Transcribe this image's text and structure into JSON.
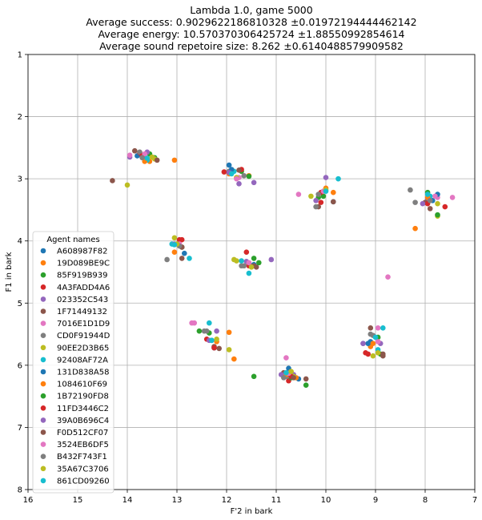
{
  "chart_data": {
    "type": "scatter",
    "title_lines": [
      "Lambda 1.0, game 5000",
      "Average success: 0.9029622186810328 ±0.01972194444462142",
      "Average energy: 10.570370306425724 ±1.88550992854614",
      "Average sound repetoire size: 8.262 ±0.6140488579909582"
    ],
    "xlabel": "F'2 in bark",
    "ylabel": "F1 in bark",
    "xlim": [
      16,
      7
    ],
    "ylim": [
      8,
      1
    ],
    "x_inverted": true,
    "y_inverted": true,
    "x_ticks": [
      16,
      15,
      14,
      13,
      12,
      11,
      10,
      9,
      8,
      7
    ],
    "y_ticks": [
      1,
      2,
      3,
      4,
      5,
      6,
      7,
      8
    ],
    "grid": true,
    "legend": {
      "title": "Agent names",
      "placement": "center-left"
    },
    "series": [
      {
        "name": "A608987F82",
        "color": "#1f77b4",
        "points": [
          [
            13.8,
            2.63
          ],
          [
            11.95,
            2.78
          ],
          [
            11.45,
            4.38
          ],
          [
            12.25,
            5.72
          ],
          [
            10.55,
            6.22
          ],
          [
            9.85,
            3.37
          ],
          [
            7.85,
            3.35
          ],
          [
            9.1,
            5.62
          ]
        ]
      },
      {
        "name": "19D089BE9C",
        "color": "#ff7f0e",
        "points": [
          [
            13.55,
            2.72
          ],
          [
            13.05,
            2.7
          ],
          [
            11.55,
            2.95
          ],
          [
            13.05,
            4.18
          ],
          [
            11.85,
            5.9
          ],
          [
            11.95,
            5.47
          ],
          [
            10.6,
            6.2
          ],
          [
            9.85,
            3.22
          ],
          [
            8.2,
            3.8
          ],
          [
            9.1,
            5.7
          ]
        ]
      },
      {
        "name": "85F919B939",
        "color": "#2ca02c",
        "points": [
          [
            13.45,
            2.66
          ],
          [
            11.55,
            2.96
          ],
          [
            11.45,
            4.28
          ],
          [
            12.55,
            5.45
          ],
          [
            11.45,
            6.18
          ],
          [
            10.4,
            6.32
          ],
          [
            10.05,
            3.28
          ],
          [
            7.95,
            3.22
          ],
          [
            8.9,
            5.82
          ]
        ]
      },
      {
        "name": "4A3FADD4A6",
        "color": "#d62728",
        "points": [
          [
            13.75,
            2.58
          ],
          [
            12.05,
            2.89
          ],
          [
            11.6,
            4.18
          ],
          [
            12.9,
            3.98
          ],
          [
            12.4,
            5.58
          ],
          [
            10.75,
            6.25
          ],
          [
            10.1,
            3.38
          ],
          [
            7.6,
            3.45
          ],
          [
            9.2,
            5.8
          ]
        ]
      },
      {
        "name": "023352C543",
        "color": "#9467bd",
        "points": [
          [
            13.95,
            2.65
          ],
          [
            11.75,
            3.08
          ],
          [
            11.45,
            3.06
          ],
          [
            11.1,
            4.3
          ],
          [
            12.2,
            5.45
          ],
          [
            10.65,
            6.15
          ],
          [
            10.0,
            2.98
          ],
          [
            8.9,
            5.65
          ],
          [
            7.95,
            3.32
          ],
          [
            9.25,
            5.65
          ]
        ]
      },
      {
        "name": "1F71449132",
        "color": "#8c564b",
        "points": [
          [
            14.3,
            3.03
          ],
          [
            13.85,
            2.55
          ],
          [
            12.9,
            4.28
          ],
          [
            11.4,
            4.42
          ],
          [
            12.25,
            5.7
          ],
          [
            10.85,
            6.12
          ],
          [
            10.15,
            3.45
          ],
          [
            8.0,
            3.38
          ],
          [
            8.85,
            5.85
          ],
          [
            10.4,
            6.22
          ],
          [
            9.1,
            5.4
          ]
        ]
      },
      {
        "name": "7016E1D1D9",
        "color": "#e377c2",
        "points": [
          [
            13.95,
            2.62
          ],
          [
            11.75,
            2.98
          ],
          [
            12.7,
            5.32
          ],
          [
            10.8,
            5.88
          ],
          [
            8.75,
            4.58
          ],
          [
            10.55,
            3.25
          ],
          [
            7.75,
            3.3
          ],
          [
            7.45,
            3.3
          ],
          [
            8.95,
            5.4
          ]
        ]
      },
      {
        "name": "CD0F91944D",
        "color": "#7f7f7f",
        "points": [
          [
            13.75,
            2.57
          ],
          [
            11.95,
            2.88
          ],
          [
            13.2,
            4.3
          ],
          [
            11.7,
            4.4
          ],
          [
            12.45,
            5.45
          ],
          [
            10.8,
            6.18
          ],
          [
            10.2,
            3.45
          ],
          [
            8.3,
            3.18
          ],
          [
            8.2,
            3.38
          ],
          [
            9.1,
            5.5
          ]
        ]
      },
      {
        "name": "90EE2D3B65",
        "color": "#bcbd22",
        "points": [
          [
            14.0,
            3.1
          ],
          [
            13.45,
            2.68
          ],
          [
            11.8,
            2.98
          ],
          [
            13.05,
            3.95
          ],
          [
            11.85,
            4.3
          ],
          [
            11.95,
            5.75
          ],
          [
            10.65,
            6.18
          ],
          [
            10.3,
            3.28
          ],
          [
            7.75,
            3.6
          ],
          [
            9.05,
            5.85
          ]
        ]
      },
      {
        "name": "92408AF72A",
        "color": "#17becf",
        "points": [
          [
            13.6,
            2.7
          ],
          [
            11.85,
            2.88
          ],
          [
            13.1,
            4.05
          ],
          [
            12.75,
            4.28
          ],
          [
            11.55,
            4.52
          ],
          [
            12.35,
            5.32
          ],
          [
            10.75,
            6.12
          ],
          [
            9.75,
            3.0
          ],
          [
            7.9,
            3.28
          ],
          [
            8.85,
            5.4
          ],
          [
            8.95,
            5.75
          ]
        ]
      },
      {
        "name": "131D838A58",
        "color": "#1f77b4",
        "points": [
          [
            13.65,
            2.65
          ],
          [
            11.9,
            2.85
          ],
          [
            12.85,
            4.2
          ],
          [
            11.5,
            4.4
          ],
          [
            12.3,
            5.6
          ],
          [
            10.75,
            6.05
          ],
          [
            10.05,
            3.2
          ],
          [
            7.75,
            3.25
          ],
          [
            9.15,
            5.65
          ]
        ]
      },
      {
        "name": "1084610F69",
        "color": "#ff7f0e",
        "points": [
          [
            13.65,
            2.72
          ],
          [
            11.95,
            2.92
          ],
          [
            12.95,
            4.08
          ],
          [
            11.55,
            4.38
          ],
          [
            12.2,
            5.62
          ],
          [
            10.8,
            6.15
          ],
          [
            10.0,
            3.15
          ],
          [
            7.95,
            3.3
          ],
          [
            9.05,
            5.65
          ]
        ]
      },
      {
        "name": "1B72190FD8",
        "color": "#2ca02c",
        "points": [
          [
            13.55,
            2.6
          ],
          [
            11.7,
            2.88
          ],
          [
            12.9,
            4.1
          ],
          [
            11.35,
            4.35
          ],
          [
            12.35,
            5.48
          ],
          [
            10.7,
            6.2
          ],
          [
            10.15,
            3.3
          ],
          [
            7.75,
            3.58
          ],
          [
            8.95,
            5.55
          ]
        ]
      },
      {
        "name": "11FD3446C2",
        "color": "#d62728",
        "points": [
          [
            13.7,
            2.63
          ],
          [
            11.7,
            2.85
          ],
          [
            12.95,
            3.98
          ],
          [
            11.55,
            4.4
          ],
          [
            12.25,
            5.72
          ],
          [
            10.7,
            6.18
          ],
          [
            10.1,
            3.22
          ],
          [
            7.95,
            3.4
          ],
          [
            9.15,
            5.82
          ]
        ]
      },
      {
        "name": "39A0B696C4",
        "color": "#9467bd",
        "points": [
          [
            13.6,
            2.57
          ],
          [
            11.95,
            2.9
          ],
          [
            13.05,
            4.05
          ],
          [
            11.6,
            4.33
          ],
          [
            12.35,
            5.6
          ],
          [
            10.9,
            6.15
          ],
          [
            10.2,
            3.35
          ],
          [
            8.05,
            3.4
          ],
          [
            9.25,
            5.65
          ]
        ]
      },
      {
        "name": "F0D512CF07",
        "color": "#8c564b",
        "points": [
          [
            13.4,
            2.7
          ],
          [
            11.75,
            2.86
          ],
          [
            12.9,
            4.1
          ],
          [
            11.45,
            4.4
          ],
          [
            12.15,
            5.73
          ],
          [
            10.65,
            6.2
          ],
          [
            9.85,
            3.37
          ],
          [
            7.9,
            3.48
          ],
          [
            8.85,
            5.82
          ]
        ]
      },
      {
        "name": "3524EB6DF5",
        "color": "#e377c2",
        "points": [
          [
            13.65,
            2.6
          ],
          [
            11.8,
            3.0
          ],
          [
            12.95,
            4.05
          ],
          [
            11.55,
            4.35
          ],
          [
            12.65,
            5.32
          ],
          [
            10.75,
            6.13
          ],
          [
            10.05,
            3.2
          ],
          [
            7.8,
            3.28
          ],
          [
            8.95,
            5.62
          ]
        ]
      },
      {
        "name": "B432F743F1",
        "color": "#7f7f7f",
        "points": [
          [
            13.7,
            2.66
          ],
          [
            11.65,
            2.95
          ],
          [
            12.95,
            4.08
          ],
          [
            11.65,
            4.4
          ],
          [
            12.4,
            5.45
          ],
          [
            10.85,
            6.2
          ],
          [
            10.15,
            3.25
          ],
          [
            7.9,
            3.35
          ],
          [
            9.05,
            5.52
          ]
        ]
      },
      {
        "name": "35A67C3706",
        "color": "#bcbd22",
        "points": [
          [
            13.5,
            2.65
          ],
          [
            11.8,
            4.32
          ],
          [
            13.0,
            4.05
          ],
          [
            11.5,
            4.42
          ],
          [
            12.2,
            5.58
          ],
          [
            10.7,
            6.1
          ],
          [
            10.0,
            3.18
          ],
          [
            7.75,
            3.4
          ],
          [
            8.95,
            5.8
          ]
        ]
      },
      {
        "name": "861CD09260",
        "color": "#17becf",
        "points": [
          [
            13.6,
            2.67
          ],
          [
            11.9,
            2.92
          ],
          [
            13.05,
            4.06
          ],
          [
            11.7,
            4.32
          ],
          [
            12.3,
            5.6
          ],
          [
            10.8,
            6.12
          ],
          [
            10.0,
            3.2
          ],
          [
            7.95,
            3.25
          ],
          [
            9.0,
            5.55
          ]
        ]
      }
    ]
  }
}
